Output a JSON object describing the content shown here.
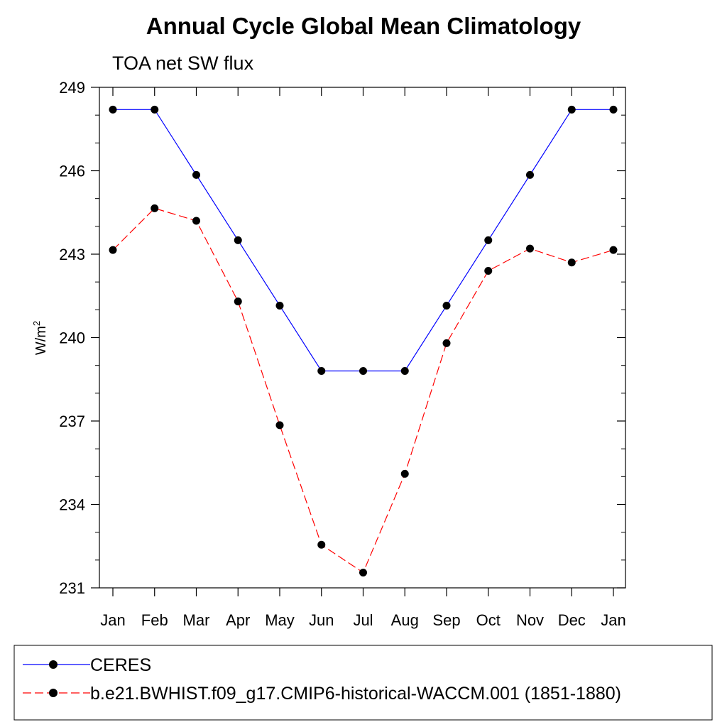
{
  "chart_data": {
    "type": "line",
    "title": "Annual Cycle Global Mean Climatology",
    "subtitle": "TOA net SW flux",
    "ylabel_base": "W/m",
    "ylabel_sup": "2",
    "xlabel": "",
    "categories": [
      "Jan",
      "Feb",
      "Mar",
      "Apr",
      "May",
      "Jun",
      "Jul",
      "Aug",
      "Sep",
      "Oct",
      "Nov",
      "Dec",
      "Jan"
    ],
    "ylim": [
      231,
      249
    ],
    "yticks": [
      231,
      234,
      237,
      240,
      243,
      246,
      249
    ],
    "yminor_step": 1,
    "grid": false,
    "legend_position": "bottom",
    "series": [
      {
        "name": "CERES",
        "color": "#0000ff",
        "line_style": "solid",
        "marker": "circle",
        "values": [
          248.2,
          248.2,
          245.85,
          243.5,
          241.15,
          238.8,
          238.8,
          238.8,
          241.15,
          243.5,
          245.85,
          248.2,
          248.2
        ]
      },
      {
        "name": "b.e21.BWHIST.f09_g17.CMIP6-historical-WACCM.001 (1851-1880)",
        "color": "#ff0000",
        "line_style": "dashed",
        "marker": "circle",
        "values": [
          243.15,
          244.65,
          244.2,
          241.3,
          236.85,
          232.55,
          231.55,
          235.1,
          239.8,
          242.4,
          243.2,
          242.7,
          243.15
        ]
      }
    ]
  }
}
